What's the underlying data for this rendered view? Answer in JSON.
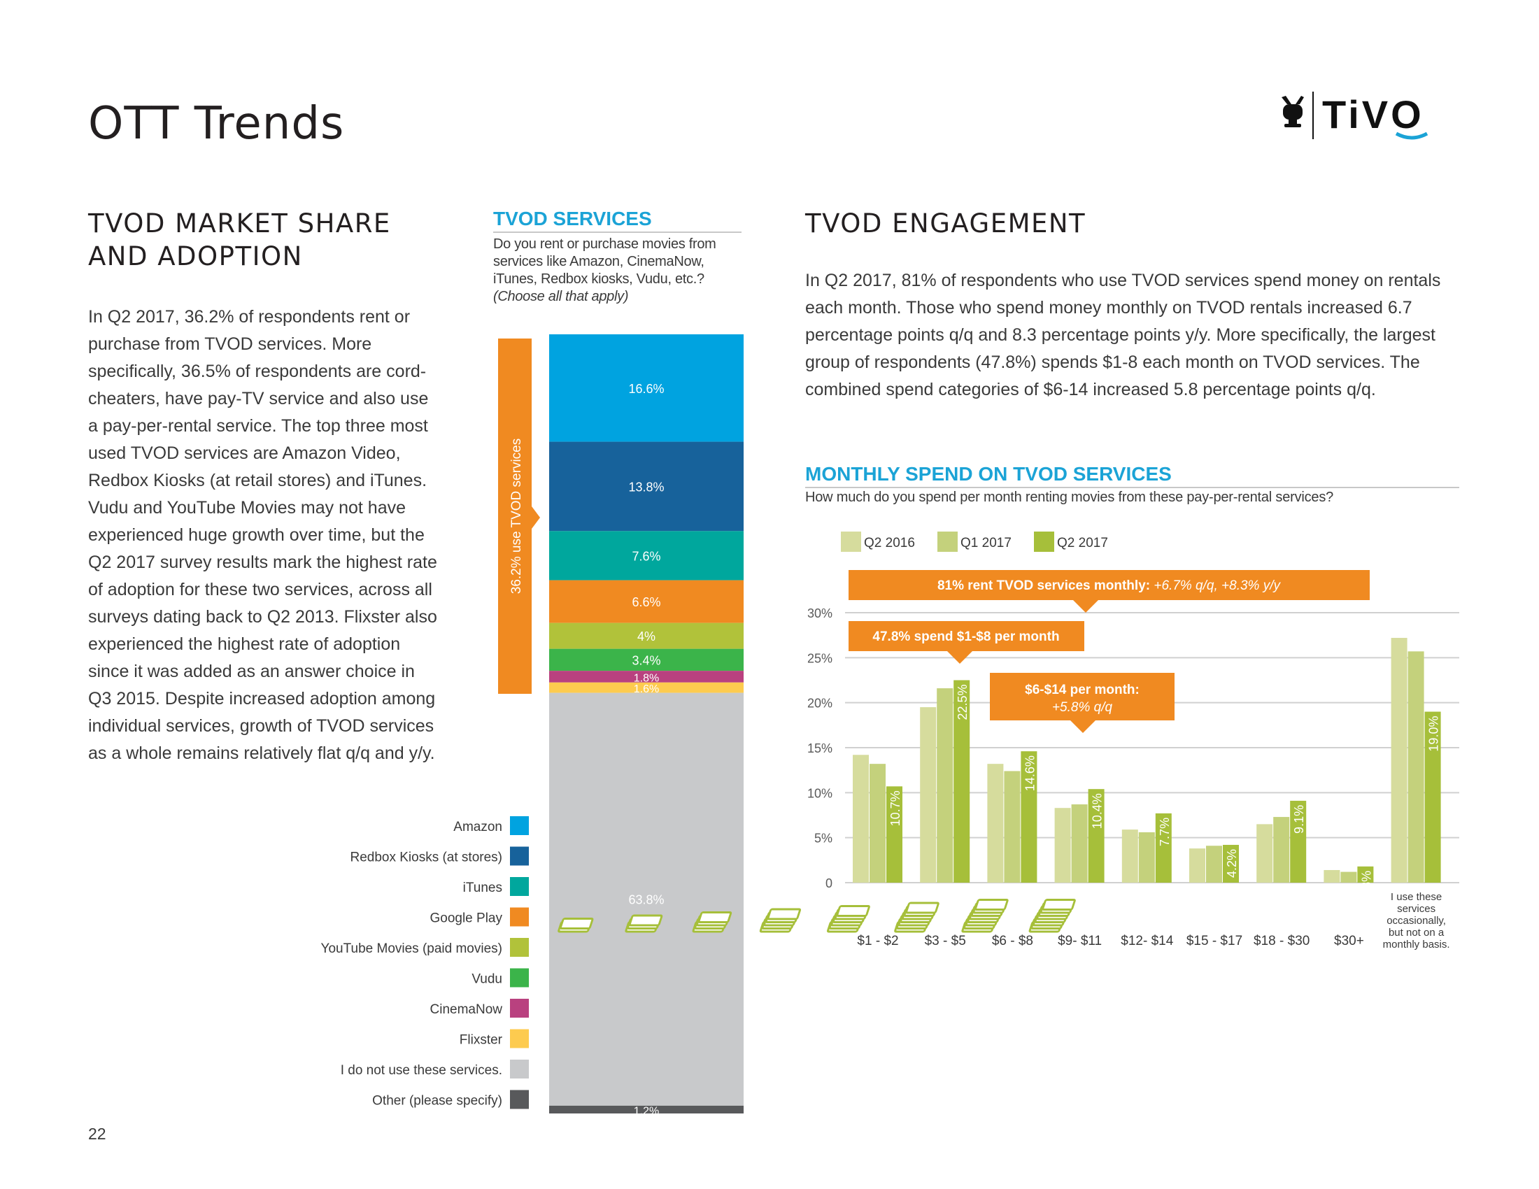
{
  "page": {
    "title": "OTT Trends",
    "page_number": "22",
    "logo_text": "TiVO"
  },
  "left": {
    "heading": "TVOD MARKET SHARE AND ADOPTION",
    "body": "In Q2 2017, 36.2% of respondents rent or purchase from TVOD services. More specifically, 36.5% of respondents are cord-cheaters, have pay-TV service and also use a pay-per-rental service. The top three most used TVOD services are Amazon Video, Redbox Kiosks (at retail stores) and iTunes. Vudu and YouTube Movies may not have experienced huge growth over time, but the Q2 2017 survey results mark the highest rate of adoption for these two services, across all surveys dating back to Q2 2013. Flixster also experienced the highest rate of adoption since it was added as an answer choice in Q3 2015. Despite increased adoption among individual services, growth of TVOD services as a whole remains relatively flat q/q and y/y."
  },
  "tvod_services": {
    "title": "TVOD SERVICES",
    "question": "Do you rent or purchase movies from services like Amazon, CinemaNow, iTunes, Redbox kiosks, Vudu, etc.?",
    "note": "(Choose all that apply)",
    "bracket_label": "36.2% use TVOD services"
  },
  "right": {
    "heading": "TVOD ENGAGEMENT",
    "body": "In Q2 2017, 81% of respondents who use TVOD services spend money on rentals each month. Those who spend money monthly on TVOD rentals increased 6.7 percentage points q/q and 8.3 percentage points y/y. More specifically, the largest group of respondents (47.8%) spends $1-8 each month on TVOD services. The combined spend categories of $6-14 increased 5.8 percentage points q/q."
  },
  "monthly_spend": {
    "title": "MONTHLY SPEND ON TVOD SERVICES",
    "question": "How much do you spend per month renting movies from these pay-per-rental services?",
    "callout_81_bold": "81% rent TVOD services monthly: ",
    "callout_81_italic": "+6.7% q/q, +8.3% y/y",
    "callout_478": "47.8% spend $1-$8 per month",
    "callout_614_bold": "$6-$14 per month:",
    "callout_614_italic": "+5.8% q/q"
  },
  "colors": {
    "orange": "#f08a21",
    "q2_2016": "#d6dc9d",
    "q1_2017": "#c4d17c",
    "q2_2017": "#a6bf3a",
    "grid": "#d0d0d0"
  },
  "chart_data": [
    {
      "type": "bar",
      "stacked": true,
      "unit": "%",
      "categories": [
        "Amazon",
        "Redbox Kiosks (at stores)",
        "iTunes",
        "Google Play",
        "YouTube Movies (paid movies)",
        "Vudu",
        "CinemaNow",
        "Flixster",
        "I do not use these services.",
        "Other (please specify)"
      ],
      "values": [
        16.6,
        13.8,
        7.6,
        6.6,
        4,
        3.4,
        1.8,
        1.6,
        63.8,
        1.2
      ],
      "labels": [
        "16.6%",
        "13.8%",
        "7.6%",
        "6.6%",
        "4%",
        "3.4%",
        "1.8%",
        "1.6%",
        "63.8%",
        "1.2%"
      ],
      "colors": [
        "#00a3e0",
        "#17629b",
        "#00a79d",
        "#f08a21",
        "#b1c23a",
        "#3bb44a",
        "#b9417f",
        "#fdcb4f",
        "#c8c9cb",
        "#58595b"
      ],
      "legend": "left"
    },
    {
      "type": "bar",
      "unit": "%",
      "categories": [
        "$1 - $2",
        "$3 - $5",
        "$6 - $8",
        "$9- $11",
        "$12- $14",
        "$15 - $17",
        "$18 - $30",
        "$30+",
        "I use these services occasionally, but not on a monthly basis."
      ],
      "series": [
        {
          "name": "Q2 2016",
          "values": [
            14.2,
            19.5,
            13.2,
            8.3,
            5.9,
            3.8,
            6.5,
            1.4,
            27.2
          ]
        },
        {
          "name": "Q1 2017",
          "values": [
            13.2,
            21.6,
            12.4,
            8.7,
            5.6,
            4.1,
            7.3,
            1.2,
            25.7
          ]
        },
        {
          "name": "Q2 2017",
          "values": [
            10.7,
            22.5,
            14.6,
            10.4,
            7.7,
            4.2,
            9.1,
            1.8,
            19.0
          ]
        }
      ],
      "data_labels": [
        "10.7%",
        "22.5%",
        "14.6%",
        "10.4%",
        "7.7%",
        "4.2%",
        "9.1%",
        "1.8%",
        "19.0%"
      ],
      "yticks": [
        "0",
        "5%",
        "10%",
        "15%",
        "20%",
        "25%",
        "30%"
      ],
      "ylim": [
        0,
        30
      ],
      "grid": true,
      "legend": "top-left"
    }
  ]
}
